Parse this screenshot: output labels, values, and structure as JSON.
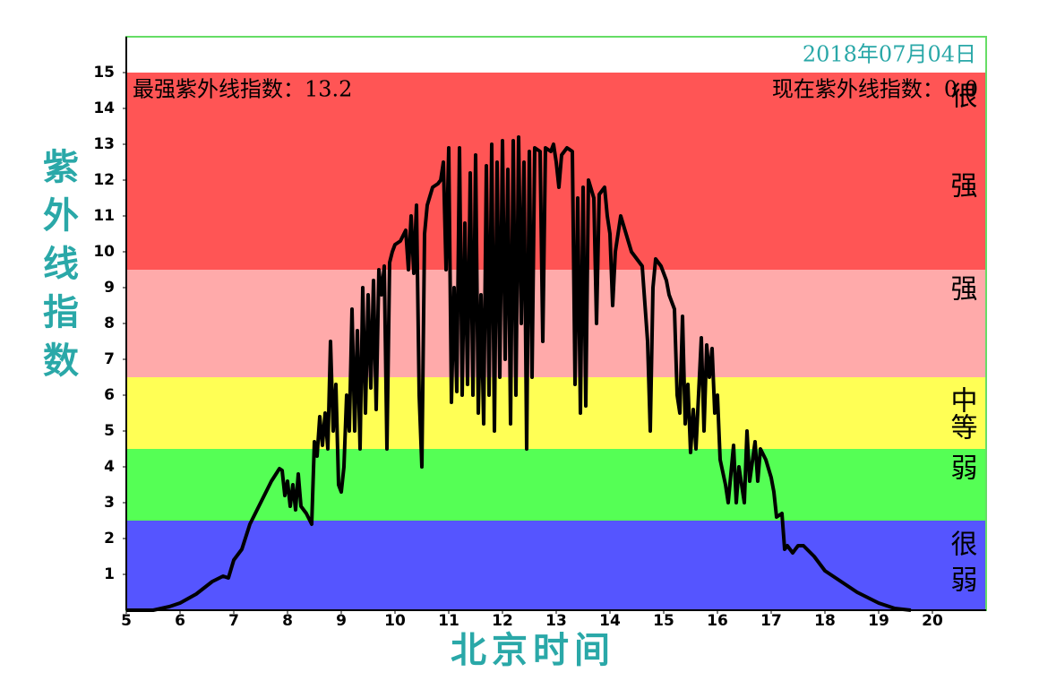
{
  "chart_data": {
    "type": "line",
    "date": "2018年07月04日",
    "max_label": "最强紫外线指数：13.2",
    "current_label": "现在紫外线指数：0.0",
    "xlabel": "北京时间",
    "ylabel": "紫外线指数",
    "xlim": [
      5,
      21
    ],
    "ylim": [
      0,
      16
    ],
    "xticks": [
      5,
      6,
      7,
      8,
      9,
      10,
      11,
      12,
      13,
      14,
      15,
      16,
      17,
      18,
      19,
      20
    ],
    "yticks": [
      1,
      2,
      3,
      4,
      5,
      6,
      7,
      8,
      9,
      10,
      11,
      12,
      13,
      14,
      15
    ],
    "bands": [
      {
        "label": "很弱",
        "from": 0,
        "to": 2.5,
        "color": "#5555ff"
      },
      {
        "label": "弱",
        "from": 2.5,
        "to": 4.5,
        "color": "#55ff55"
      },
      {
        "label": "中等",
        "from": 4.5,
        "to": 6.5,
        "color": "#ffff55"
      },
      {
        "label": "强",
        "from": 6.5,
        "to": 9.5,
        "color": "#ffaaaa"
      },
      {
        "label": "很强",
        "from": 9.5,
        "to": 15,
        "color": "#ff5555"
      }
    ],
    "color": "#000000",
    "x": [
      5,
      5.5,
      5.8,
      6,
      6.3,
      6.6,
      6.8,
      6.9,
      7,
      7.15,
      7.3,
      7.5,
      7.7,
      7.85,
      7.9,
      7.95,
      8,
      8.05,
      8.1,
      8.15,
      8.2,
      8.25,
      8.35,
      8.45,
      8.5,
      8.55,
      8.6,
      8.65,
      8.7,
      8.75,
      8.8,
      8.85,
      8.9,
      8.95,
      9,
      9.05,
      9.1,
      9.15,
      9.2,
      9.25,
      9.3,
      9.35,
      9.4,
      9.45,
      9.5,
      9.55,
      9.6,
      9.65,
      9.7,
      9.75,
      9.8,
      9.85,
      9.9,
      9.95,
      10,
      10.1,
      10.2,
      10.25,
      10.3,
      10.35,
      10.4,
      10.45,
      10.5,
      10.55,
      10.6,
      10.7,
      10.8,
      10.85,
      10.9,
      10.95,
      11,
      11.05,
      11.1,
      11.15,
      11.2,
      11.25,
      11.3,
      11.35,
      11.4,
      11.45,
      11.5,
      11.55,
      11.6,
      11.65,
      11.7,
      11.75,
      11.8,
      11.85,
      11.9,
      11.95,
      12,
      12.05,
      12.1,
      12.15,
      12.2,
      12.25,
      12.3,
      12.35,
      12.4,
      12.45,
      12.5,
      12.55,
      12.6,
      12.7,
      12.75,
      12.8,
      12.9,
      12.95,
      13,
      13.05,
      13.1,
      13.2,
      13.3,
      13.35,
      13.4,
      13.45,
      13.5,
      13.55,
      13.6,
      13.7,
      13.75,
      13.8,
      13.9,
      13.95,
      14,
      14.05,
      14.1,
      14.2,
      14.3,
      14.4,
      14.5,
      14.6,
      14.7,
      14.75,
      14.8,
      14.85,
      14.95,
      15.05,
      15.1,
      15.2,
      15.25,
      15.3,
      15.35,
      15.4,
      15.45,
      15.5,
      15.55,
      15.6,
      15.7,
      15.75,
      15.8,
      15.85,
      15.9,
      15.95,
      16,
      16.05,
      16.15,
      16.2,
      16.3,
      16.35,
      16.4,
      16.45,
      16.5,
      16.55,
      16.6,
      16.7,
      16.75,
      16.8,
      16.9,
      17,
      17.05,
      17.1,
      17.2,
      17.25,
      17.3,
      17.4,
      17.5,
      17.6,
      17.8,
      18,
      18.3,
      18.6,
      19,
      19.3,
      19.6
    ],
    "values": [
      0,
      0,
      0.1,
      0.2,
      0.45,
      0.8,
      0.95,
      0.9,
      1.4,
      1.7,
      2.4,
      3,
      3.6,
      3.95,
      3.9,
      3.2,
      3.6,
      2.9,
      3.5,
      2.8,
      3.8,
      2.9,
      2.7,
      2.4,
      4.7,
      4.3,
      5.4,
      4.6,
      5.5,
      4.5,
      7.5,
      5,
      6.3,
      3.5,
      3.3,
      4,
      6,
      5,
      8.4,
      5,
      7.8,
      4.5,
      9,
      5.5,
      8.8,
      6.2,
      9.2,
      5.6,
      9.5,
      8.8,
      9.6,
      4.5,
      9.7,
      10,
      10.2,
      10.3,
      10.6,
      9.5,
      11,
      9.4,
      11.3,
      6,
      4,
      10.5,
      11.3,
      11.8,
      11.9,
      12,
      12.5,
      9.5,
      12.9,
      5.8,
      9,
      6.1,
      12.9,
      6,
      10.8,
      6.3,
      12.2,
      6,
      12.7,
      5.5,
      8.8,
      5.2,
      12.4,
      6,
      13,
      5,
      12.5,
      6.5,
      13.1,
      7,
      12.3,
      5.2,
      13.1,
      6,
      13.2,
      8,
      12.5,
      4.5,
      12.8,
      6.5,
      12.9,
      12.8,
      7.5,
      12.9,
      12.8,
      13,
      12.5,
      11.8,
      12.7,
      12.9,
      12.8,
      6.3,
      11.5,
      5.5,
      11.8,
      5.7,
      12,
      11.5,
      8,
      11.6,
      11.8,
      11,
      10.5,
      8.5,
      10,
      11,
      10.5,
      10,
      9.8,
      9.6,
      7.5,
      5,
      9,
      9.8,
      9.6,
      9.2,
      8.8,
      8.4,
      6,
      5.5,
      8.2,
      5.2,
      6.3,
      4.4,
      5.6,
      4.5,
      7.6,
      5,
      7.4,
      6.5,
      7.3,
      5.5,
      6,
      4.2,
      3.5,
      3,
      4.6,
      3,
      4,
      3.5,
      3,
      5,
      3.6,
      4.7,
      3.6,
      4.5,
      4.2,
      3.7,
      3.3,
      2.6,
      2.7,
      1.7,
      1.8,
      1.6,
      1.8,
      1.8,
      1.5,
      1.1,
      0.8,
      0.5,
      0.2,
      0.05,
      0
    ]
  }
}
